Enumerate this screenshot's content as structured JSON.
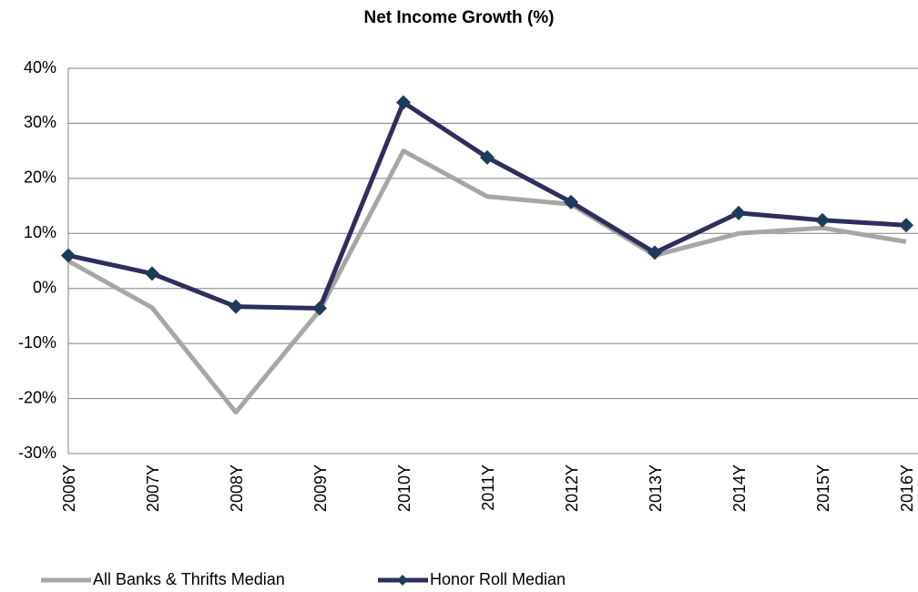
{
  "chart_data": {
    "type": "line",
    "title": "Net Income Growth (%)",
    "categories": [
      "2006Y",
      "2007Y",
      "2008Y",
      "2009Y",
      "2010Y",
      "2011Y",
      "2012Y",
      "2013Y",
      "2014Y",
      "2015Y",
      "2016Y"
    ],
    "series": [
      {
        "name": "All Banks & Thrifts Median",
        "color": "#a6a6a6",
        "marker": false,
        "values": [
          5,
          -3.5,
          -22.5,
          -4,
          25,
          16.7,
          15.3,
          6,
          10,
          11,
          8.5
        ]
      },
      {
        "name": "Honor Roll Median",
        "color": "#2e2e5e",
        "marker": true,
        "values": [
          6,
          2.7,
          -3.3,
          -3.6,
          33.8,
          23.8,
          15.7,
          6.5,
          13.7,
          12.4,
          11.5
        ]
      }
    ],
    "ylim": [
      -30,
      40
    ],
    "yticks": [
      {
        "value": -30,
        "label": "-30%"
      },
      {
        "value": -20,
        "label": "-20%"
      },
      {
        "value": -10,
        "label": "-10%"
      },
      {
        "value": 0,
        "label": "0%"
      },
      {
        "value": 10,
        "label": "10%"
      },
      {
        "value": 20,
        "label": "20%"
      },
      {
        "value": 30,
        "label": "30%"
      },
      {
        "value": 40,
        "label": "40%"
      }
    ],
    "grid": true,
    "legend": "bottom"
  }
}
